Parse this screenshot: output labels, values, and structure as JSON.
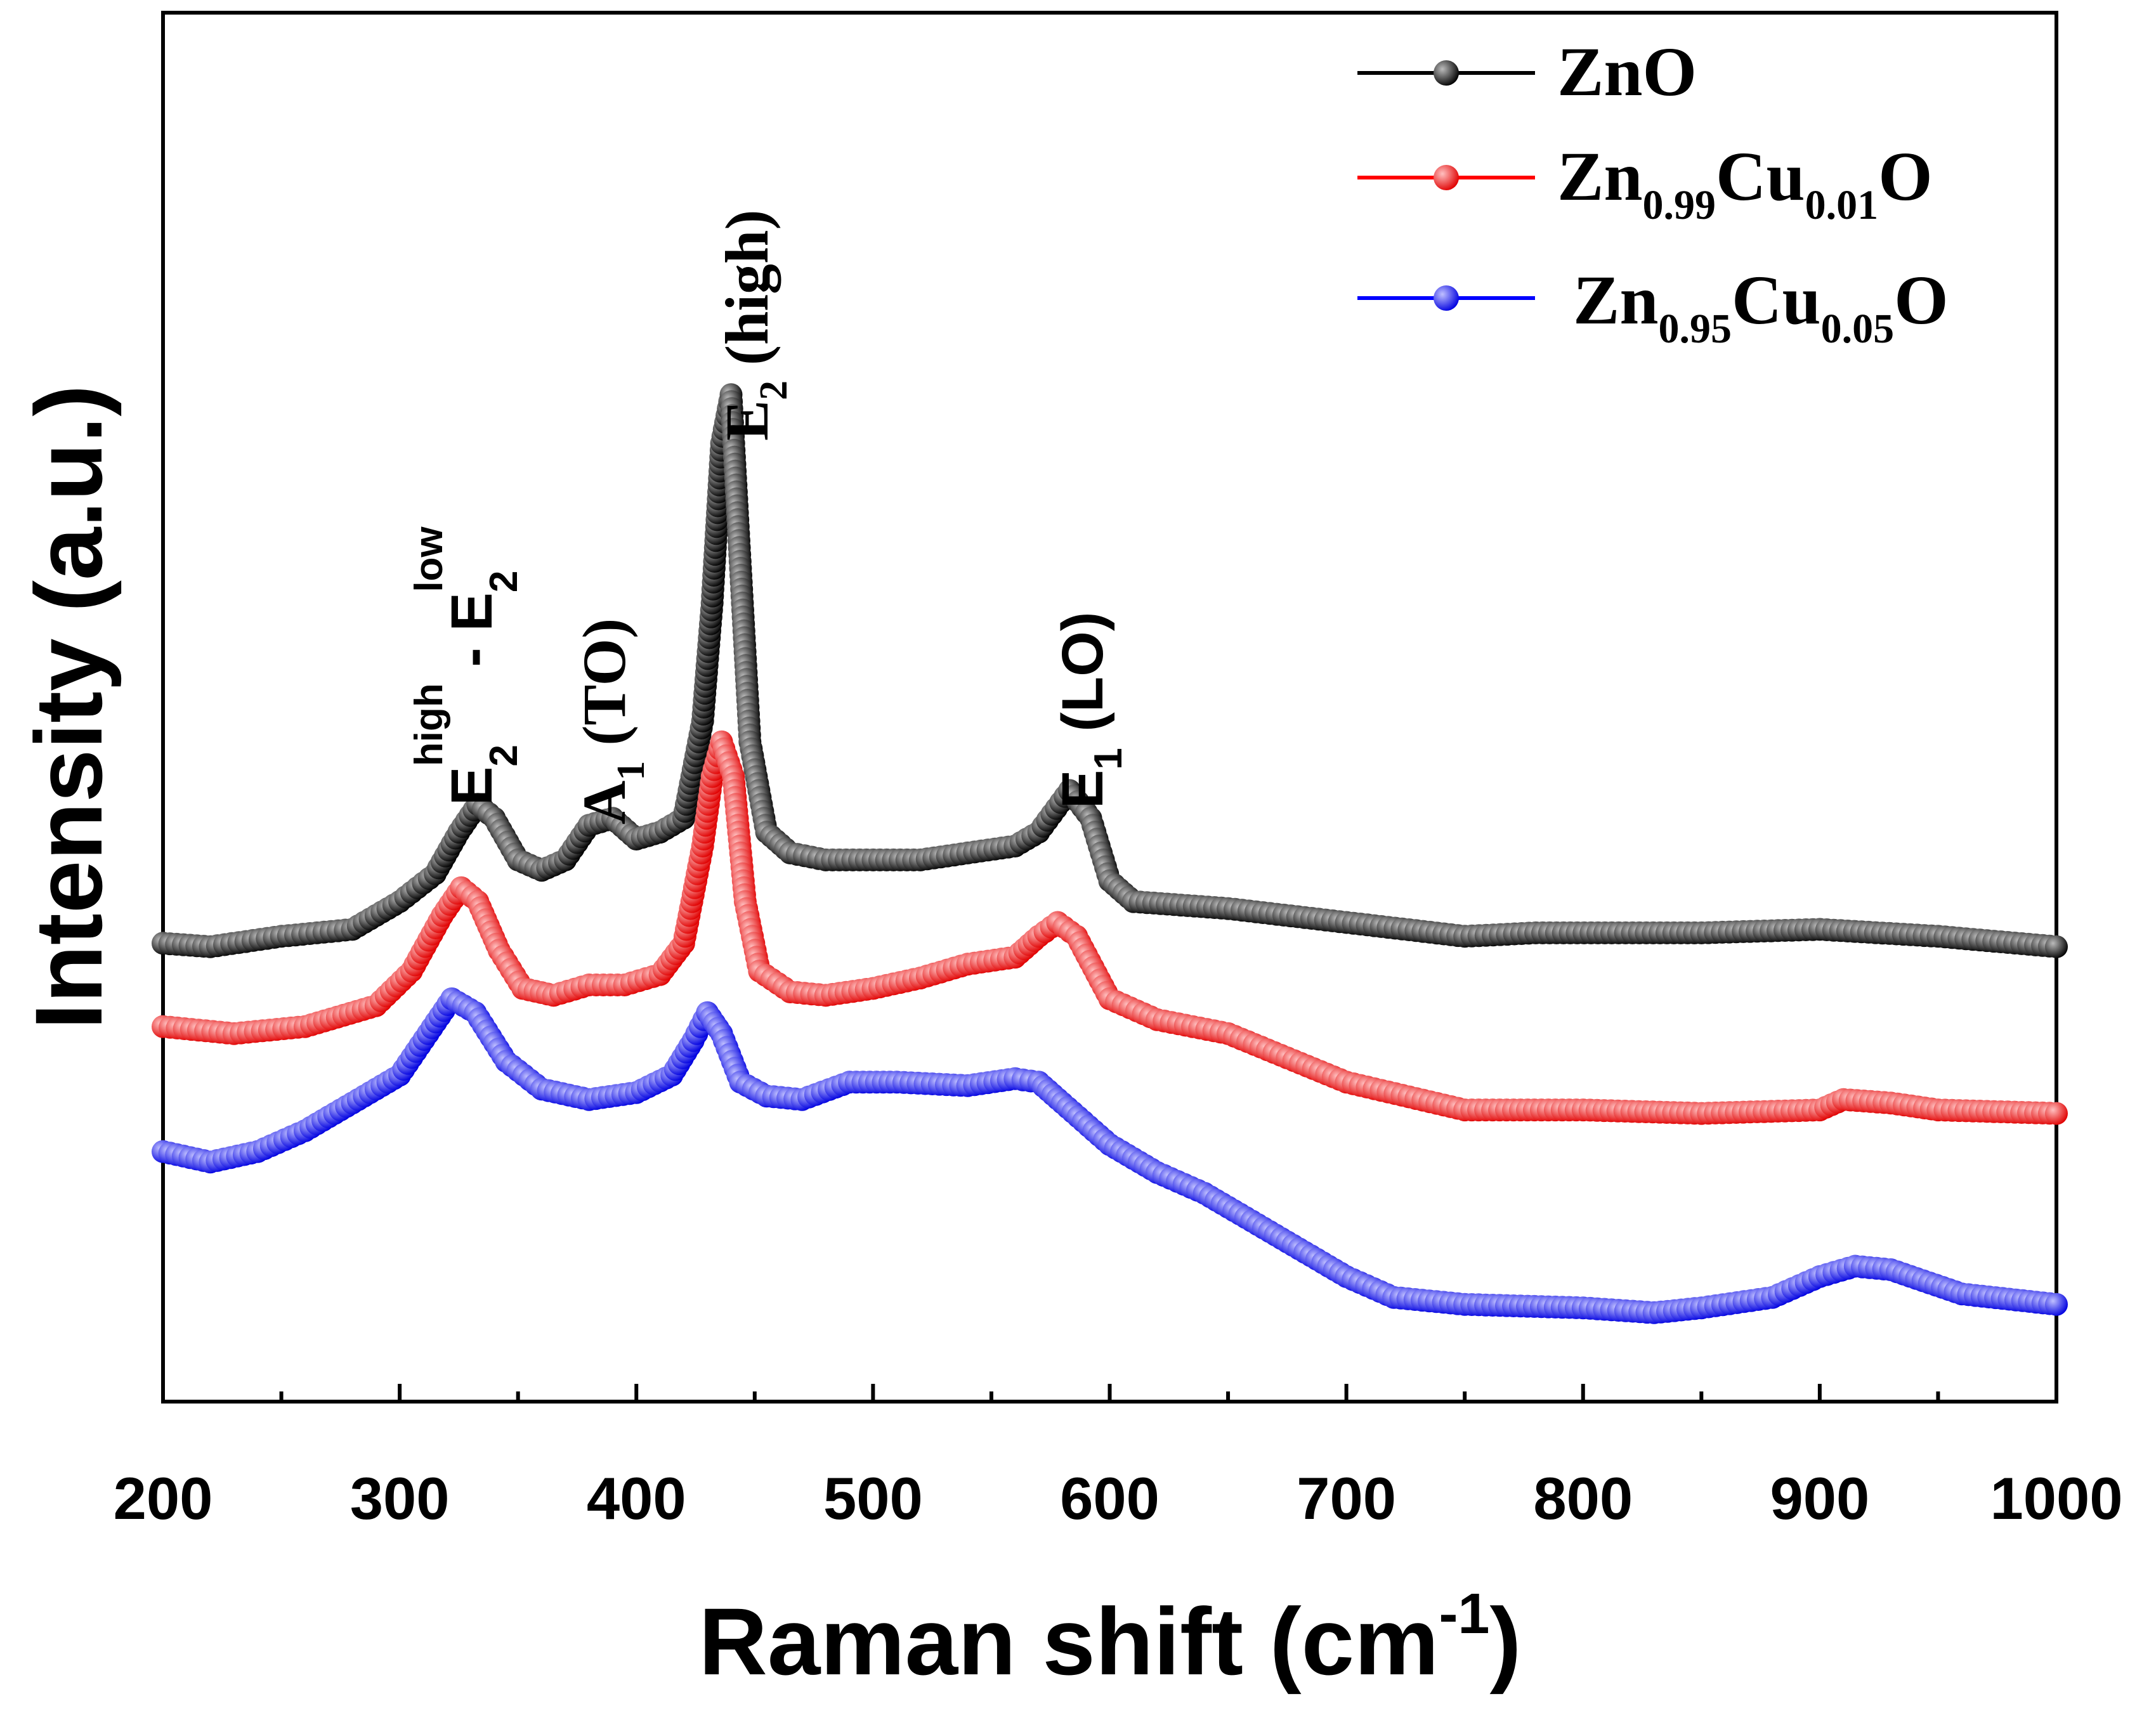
{
  "chart_data": {
    "type": "line",
    "title": "",
    "xlabel": "Raman shift (cm",
    "xlabel_sup": "-1",
    "xlabel_close": ")",
    "ylabel": "Intensity (a.u.)",
    "xlim": [
      200,
      1000
    ],
    "ylim": [
      0,
      2.0
    ],
    "x_ticks": [
      200,
      300,
      400,
      500,
      600,
      700,
      800,
      900,
      1000
    ],
    "y_ticks_shown": false,
    "legend_position": "top-right",
    "series": [
      {
        "name": "ZnO",
        "name_parts": [
          "ZnO"
        ],
        "color": "#000000",
        "marker": "circle",
        "points": [
          [
            200,
            0.66
          ],
          [
            220,
            0.655
          ],
          [
            250,
            0.67
          ],
          [
            280,
            0.68
          ],
          [
            300,
            0.72
          ],
          [
            315,
            0.76
          ],
          [
            325,
            0.82
          ],
          [
            333,
            0.86
          ],
          [
            340,
            0.84
          ],
          [
            350,
            0.78
          ],
          [
            360,
            0.765
          ],
          [
            370,
            0.78
          ],
          [
            380,
            0.83
          ],
          [
            390,
            0.84
          ],
          [
            400,
            0.81
          ],
          [
            410,
            0.82
          ],
          [
            420,
            0.84
          ],
          [
            428,
            0.98
          ],
          [
            432,
            1.15
          ],
          [
            436,
            1.38
          ],
          [
            440,
            1.45
          ],
          [
            444,
            1.2
          ],
          [
            448,
            0.95
          ],
          [
            455,
            0.82
          ],
          [
            465,
            0.79
          ],
          [
            480,
            0.78
          ],
          [
            500,
            0.78
          ],
          [
            520,
            0.78
          ],
          [
            540,
            0.79
          ],
          [
            560,
            0.8
          ],
          [
            570,
            0.82
          ],
          [
            583,
            0.88
          ],
          [
            592,
            0.84
          ],
          [
            600,
            0.75
          ],
          [
            610,
            0.72
          ],
          [
            650,
            0.71
          ],
          [
            700,
            0.69
          ],
          [
            750,
            0.67
          ],
          [
            780,
            0.675
          ],
          [
            850,
            0.675
          ],
          [
            900,
            0.68
          ],
          [
            950,
            0.67
          ],
          [
            1000,
            0.655
          ]
        ]
      },
      {
        "name": "Zn0.99Cu0.01O",
        "name_parts": [
          "Zn",
          "0.99",
          "Cu",
          "0.01",
          "O"
        ],
        "color": "#ff0000",
        "marker": "circle",
        "points": [
          [
            200,
            0.54
          ],
          [
            230,
            0.53
          ],
          [
            260,
            0.54
          ],
          [
            290,
            0.57
          ],
          [
            305,
            0.62
          ],
          [
            318,
            0.7
          ],
          [
            326,
            0.74
          ],
          [
            333,
            0.72
          ],
          [
            342,
            0.65
          ],
          [
            352,
            0.595
          ],
          [
            365,
            0.585
          ],
          [
            380,
            0.6
          ],
          [
            395,
            0.6
          ],
          [
            410,
            0.615
          ],
          [
            420,
            0.66
          ],
          [
            428,
            0.8
          ],
          [
            432,
            0.9
          ],
          [
            436,
            0.95
          ],
          [
            441,
            0.9
          ],
          [
            446,
            0.72
          ],
          [
            452,
            0.62
          ],
          [
            465,
            0.59
          ],
          [
            480,
            0.585
          ],
          [
            500,
            0.595
          ],
          [
            520,
            0.61
          ],
          [
            540,
            0.63
          ],
          [
            560,
            0.64
          ],
          [
            570,
            0.67
          ],
          [
            578,
            0.69
          ],
          [
            586,
            0.67
          ],
          [
            600,
            0.58
          ],
          [
            620,
            0.55
          ],
          [
            650,
            0.53
          ],
          [
            700,
            0.46
          ],
          [
            750,
            0.42
          ],
          [
            800,
            0.42
          ],
          [
            850,
            0.415
          ],
          [
            900,
            0.42
          ],
          [
            910,
            0.435
          ],
          [
            930,
            0.43
          ],
          [
            950,
            0.42
          ],
          [
            1000,
            0.415
          ]
        ]
      },
      {
        "name": "Zn0.95Cu0.05O",
        "name_parts": [
          "Zn",
          "0.95",
          "Cu",
          "0.05",
          "O"
        ],
        "color": "#0000ff",
        "marker": "circle",
        "points": [
          [
            200,
            0.36
          ],
          [
            220,
            0.345
          ],
          [
            240,
            0.36
          ],
          [
            260,
            0.39
          ],
          [
            280,
            0.43
          ],
          [
            300,
            0.47
          ],
          [
            312,
            0.53
          ],
          [
            322,
            0.58
          ],
          [
            332,
            0.56
          ],
          [
            345,
            0.49
          ],
          [
            360,
            0.45
          ],
          [
            380,
            0.435
          ],
          [
            400,
            0.445
          ],
          [
            415,
            0.47
          ],
          [
            424,
            0.52
          ],
          [
            430,
            0.56
          ],
          [
            436,
            0.53
          ],
          [
            444,
            0.46
          ],
          [
            455,
            0.44
          ],
          [
            470,
            0.435
          ],
          [
            490,
            0.46
          ],
          [
            510,
            0.46
          ],
          [
            540,
            0.455
          ],
          [
            560,
            0.465
          ],
          [
            570,
            0.46
          ],
          [
            580,
            0.43
          ],
          [
            600,
            0.37
          ],
          [
            620,
            0.33
          ],
          [
            640,
            0.3
          ],
          [
            660,
            0.26
          ],
          [
            680,
            0.22
          ],
          [
            700,
            0.18
          ],
          [
            720,
            0.15
          ],
          [
            750,
            0.14
          ],
          [
            800,
            0.135
          ],
          [
            830,
            0.128
          ],
          [
            850,
            0.135
          ],
          [
            880,
            0.15
          ],
          [
            900,
            0.18
          ],
          [
            915,
            0.195
          ],
          [
            930,
            0.19
          ],
          [
            960,
            0.155
          ],
          [
            1000,
            0.14
          ]
        ]
      }
    ],
    "annotations": [
      {
        "id": "e2-diff",
        "base": "E",
        "sub": "2",
        "sup": "high",
        "middle": " - ",
        "base2": "E",
        "sub2": "2",
        "sup2": "low",
        "x": 325
      },
      {
        "id": "a1-to",
        "base": "A",
        "sub": "1",
        "rest": " (TO)",
        "x": 385
      },
      {
        "id": "e2-high",
        "base": "E",
        "sub": "2",
        "rest": " (high)",
        "x": 440
      },
      {
        "id": "e1-lo",
        "base": "E",
        "sub": "1",
        "rest": " (LO)",
        "x": 583
      }
    ]
  }
}
